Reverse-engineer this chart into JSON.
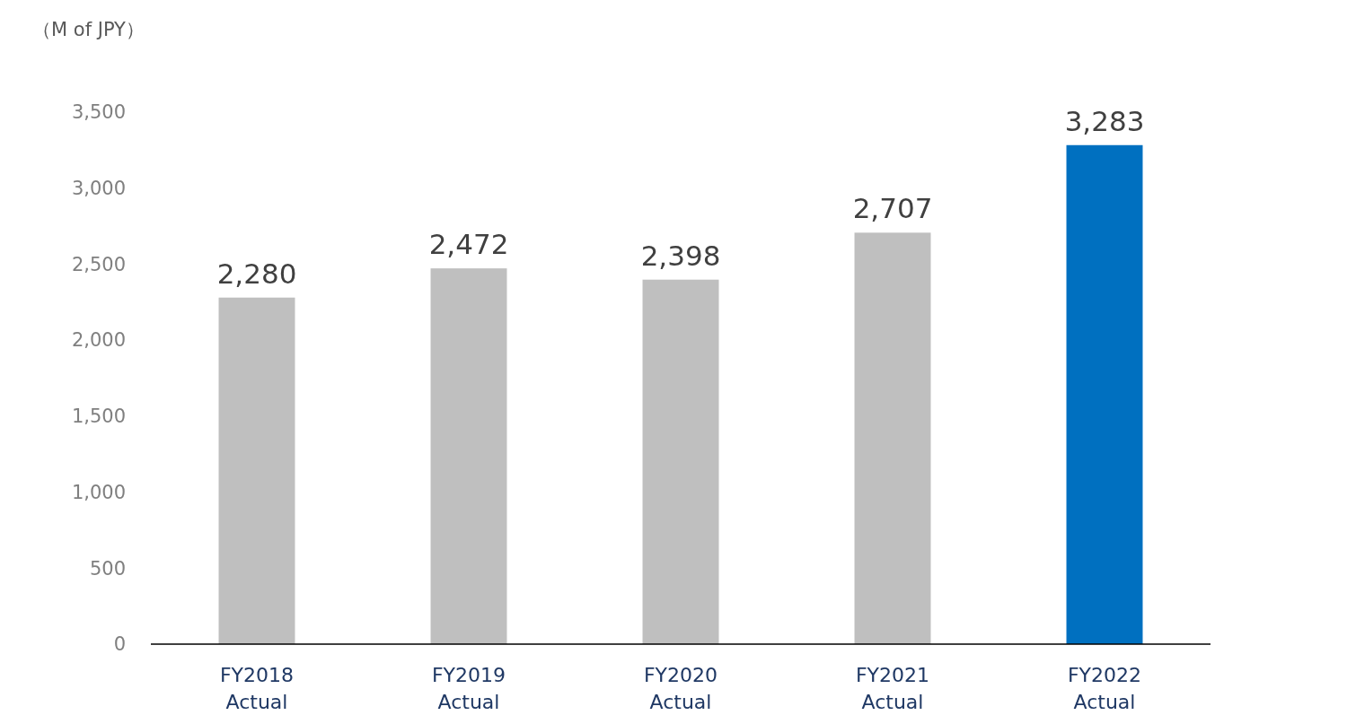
{
  "chart_data": {
    "type": "bar",
    "ylabel": "（M of JPY）",
    "categories": [
      "FY2018 Actual",
      "FY2019 Actual",
      "FY2020 Actual",
      "FY2021 Actual",
      "FY2022 Actual"
    ],
    "values": [
      2280,
      2472,
      2398,
      2707,
      3283
    ],
    "colors": [
      "#bfbfbf",
      "#bfbfbf",
      "#bfbfbf",
      "#bfbfbf",
      "#0070c0"
    ],
    "ylim": [
      0,
      3500
    ],
    "yticks": [
      {
        "value": 0,
        "label": "0"
      },
      {
        "value": 500,
        "label": "500"
      },
      {
        "value": 1000,
        "label": "1,000"
      },
      {
        "value": 1500,
        "label": "1,500"
      },
      {
        "value": 2000,
        "label": "2,000"
      },
      {
        "value": 2500,
        "label": "2,500"
      },
      {
        "value": 3000,
        "label": "3,000"
      },
      {
        "value": 3500,
        "label": "3,500"
      }
    ],
    "value_labels": [
      "2,280",
      "2,472",
      "2,398",
      "2,707",
      "3,283"
    ],
    "grid": false
  }
}
